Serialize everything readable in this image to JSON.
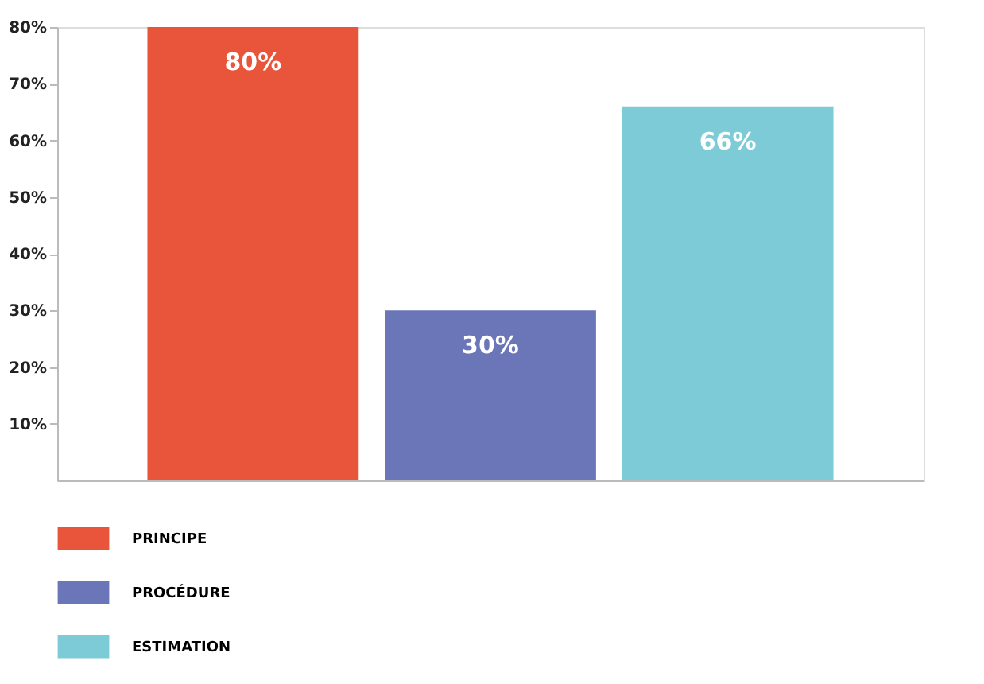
{
  "chart_data": {
    "type": "bar",
    "categories": [
      null,
      null,
      null
    ],
    "series": [
      {
        "name": "PRINCIPE",
        "color": "#e8553a",
        "values": [
          80,
          null,
          null
        ],
        "value_labels": [
          "80%",
          null,
          null
        ]
      },
      {
        "name": "PROCÉDURE",
        "color": "#6b76b8",
        "values": [
          null,
          30,
          null
        ],
        "value_labels": [
          null,
          "30%",
          null
        ]
      },
      {
        "name": "ESTIMATION",
        "color": "#7ccbd6",
        "values": [
          null,
          null,
          66
        ],
        "value_labels": [
          null,
          null,
          "66%"
        ]
      }
    ],
    "ylim": [
      0,
      80
    ],
    "yticks": [
      {
        "value": 10,
        "label": "10%"
      },
      {
        "value": 20,
        "label": "20%"
      },
      {
        "value": 30,
        "label": "30%"
      },
      {
        "value": 40,
        "label": "40%"
      },
      {
        "value": 50,
        "label": "50%"
      },
      {
        "value": 60,
        "label": "60%"
      },
      {
        "value": 70,
        "label": "70%"
      },
      {
        "value": 80,
        "label": "80%"
      }
    ],
    "tick_labels": "y",
    "grid": false,
    "legend": "bottom left"
  }
}
